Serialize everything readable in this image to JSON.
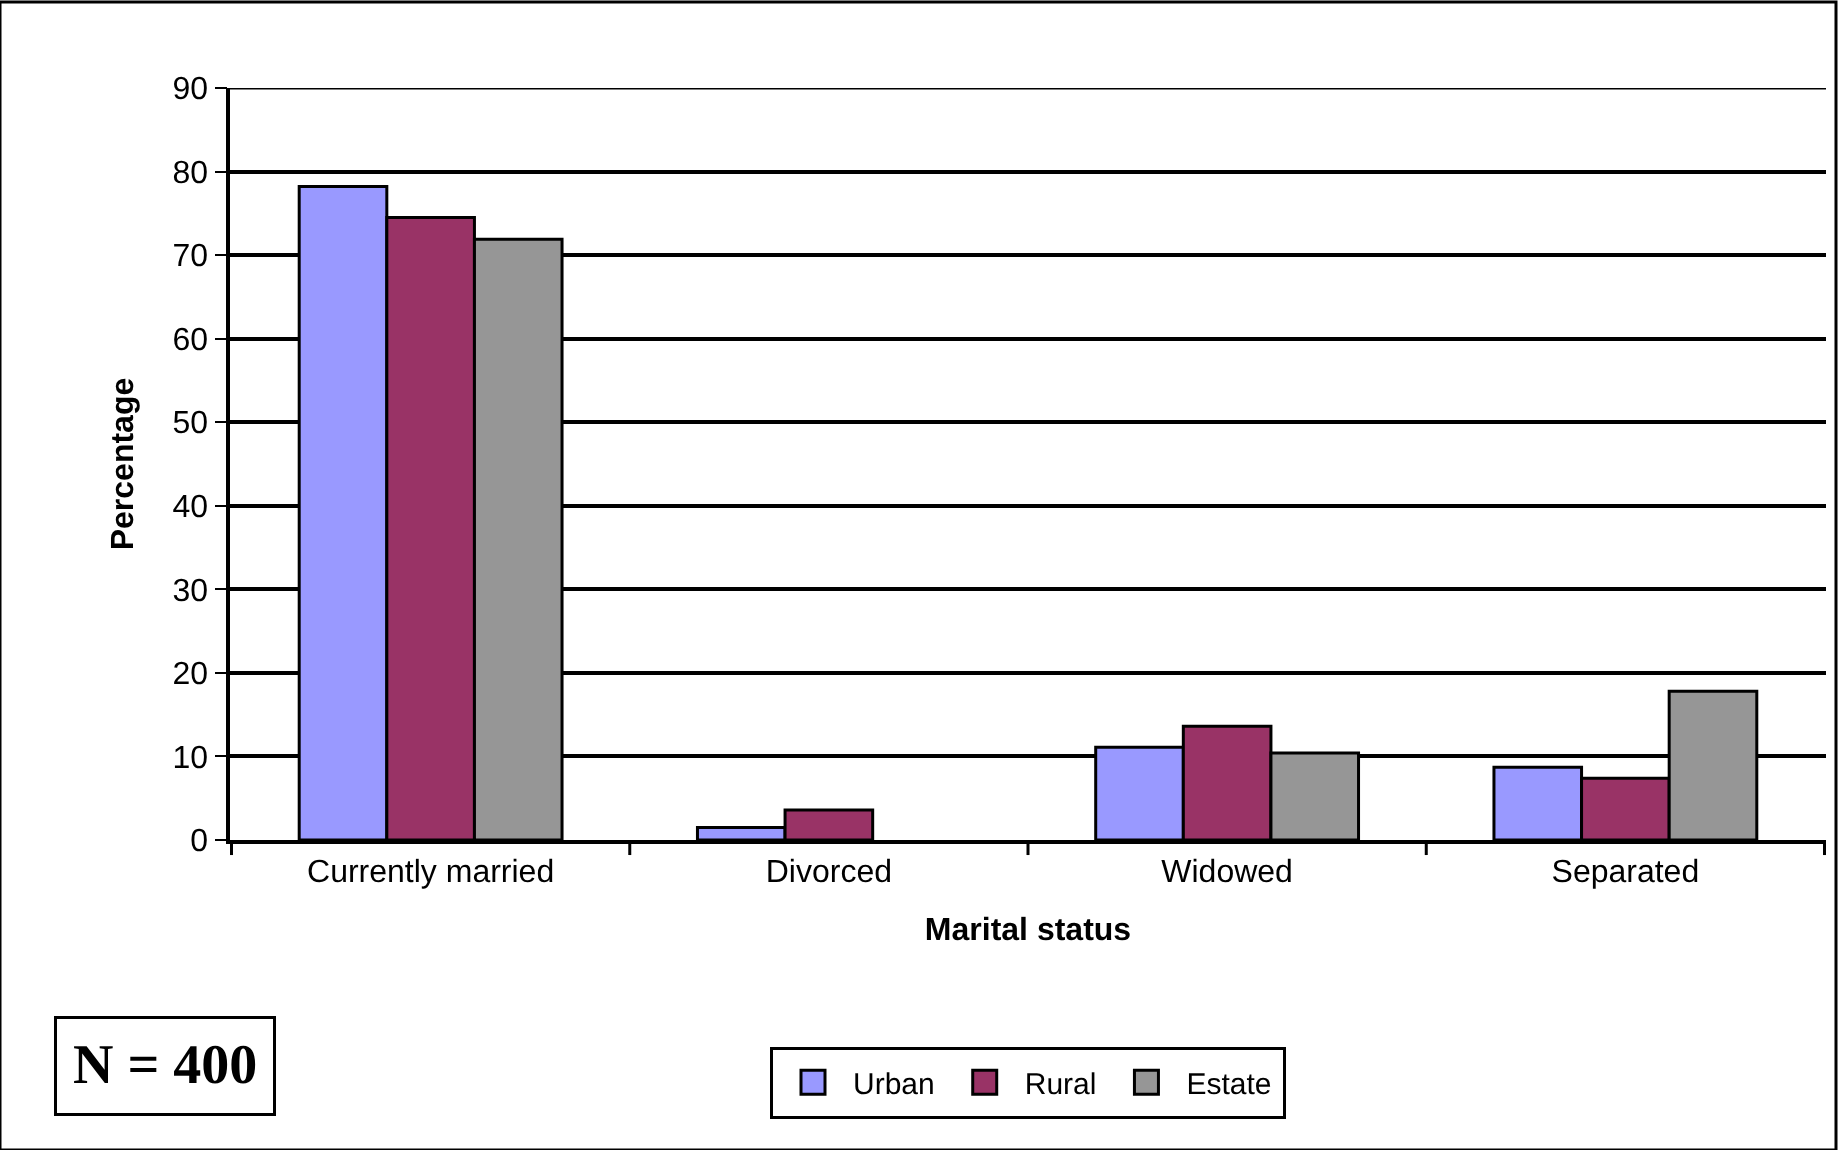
{
  "chart_data": {
    "type": "bar",
    "xlabel": "Marital status",
    "ylabel": "Percentage",
    "categories": [
      "Currently married",
      "Divorced",
      "Widowed",
      "Separated"
    ],
    "series": [
      {
        "name": "Urban",
        "color": "#9999ff",
        "values": [
          78.2,
          1.5,
          11.1,
          8.7
        ]
      },
      {
        "name": "Rural",
        "color": "#993366",
        "values": [
          74.5,
          3.6,
          13.6,
          7.4
        ]
      },
      {
        "name": "Estate",
        "color": "#969696",
        "values": [
          71.9,
          null,
          10.4,
          17.8
        ]
      }
    ],
    "ylim": [
      0,
      90
    ],
    "yticks": [
      0,
      10,
      20,
      30,
      40,
      50,
      60,
      70,
      80,
      90
    ],
    "grid": "y",
    "legend": "bottom",
    "annotations": [
      "N = 400"
    ]
  }
}
